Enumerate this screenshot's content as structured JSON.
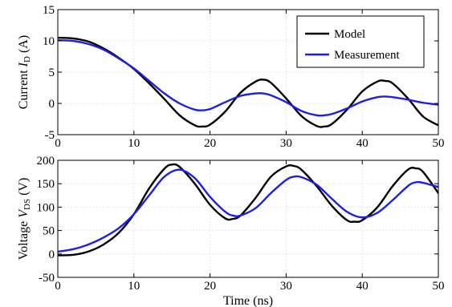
{
  "chart_data": [
    {
      "type": "line",
      "xlabel": "",
      "ylabel": "Current",
      "ylabel_symbol": "I",
      "ylabel_subscript": "D",
      "ylabel_unit": "(A)",
      "xlim": [
        0,
        50
      ],
      "ylim": [
        -5,
        15
      ],
      "xticks": [
        0,
        10,
        20,
        30,
        40,
        50
      ],
      "yticks": [
        -5,
        0,
        5,
        10,
        15
      ],
      "grid": true,
      "legend": {
        "placement": "top-right",
        "entries": [
          "Model",
          "Measurement"
        ]
      },
      "series": [
        {
          "name": "Model",
          "color": "#000000",
          "x": [
            0,
            2,
            4,
            6,
            8,
            10,
            12,
            14,
            16,
            18,
            19,
            20,
            22,
            24,
            26,
            27,
            28,
            30,
            32,
            34,
            35,
            36,
            38,
            40,
            42,
            43,
            44,
            46,
            48,
            50
          ],
          "y": [
            10.5,
            10.4,
            9.9,
            8.8,
            7.3,
            5.5,
            3.2,
            0.7,
            -1.9,
            -3.5,
            -3.7,
            -3.4,
            -1.3,
            1.7,
            3.5,
            3.8,
            3.3,
            0.8,
            -2.0,
            -3.6,
            -3.7,
            -3.3,
            -1.0,
            1.9,
            3.5,
            3.6,
            3.2,
            0.8,
            -2.1,
            -3.5
          ]
        },
        {
          "name": "Measurement",
          "color": "#1f1fe0",
          "x": [
            0,
            2,
            4,
            6,
            8,
            10,
            12,
            14,
            16,
            18,
            19,
            20,
            22,
            24,
            26,
            27,
            28,
            30,
            32,
            34,
            35,
            36,
            38,
            40,
            42,
            43,
            44,
            46,
            48,
            50
          ],
          "y": [
            10.1,
            10.0,
            9.5,
            8.6,
            7.2,
            5.6,
            3.6,
            1.6,
            0.0,
            -1.0,
            -1.1,
            -0.9,
            0.2,
            1.2,
            1.6,
            1.6,
            1.3,
            0.2,
            -1.2,
            -1.9,
            -1.9,
            -1.7,
            -0.8,
            0.3,
            1.0,
            1.1,
            1.0,
            0.6,
            0.1,
            -0.2
          ]
        }
      ]
    },
    {
      "type": "line",
      "xlabel": "Time (ns)",
      "ylabel": "Voltage",
      "ylabel_symbol": "V",
      "ylabel_subscript": "DS",
      "ylabel_unit": "(V)",
      "xlim": [
        0,
        50
      ],
      "ylim": [
        -50,
        200
      ],
      "xticks": [
        0,
        10,
        20,
        30,
        40,
        50
      ],
      "yticks": [
        -50,
        0,
        50,
        100,
        150,
        200
      ],
      "grid": true,
      "series": [
        {
          "name": "Model",
          "color": "#000000",
          "x": [
            0,
            2,
            4,
            6,
            8,
            10,
            12,
            14,
            15,
            16,
            18,
            20,
            22,
            23,
            24,
            26,
            28,
            30,
            31,
            32,
            34,
            36,
            38,
            39,
            40,
            42,
            44,
            46,
            47,
            48,
            50
          ],
          "y": [
            -3,
            -2,
            5,
            20,
            45,
            85,
            140,
            182,
            191,
            186,
            150,
            105,
            76,
            75,
            82,
            120,
            165,
            187,
            188,
            180,
            145,
            103,
            72,
            69,
            72,
            100,
            145,
            180,
            183,
            175,
            130
          ]
        },
        {
          "name": "Measurement",
          "color": "#1f1fe0",
          "x": [
            0,
            2,
            4,
            6,
            8,
            10,
            12,
            14,
            16,
            18,
            20,
            22,
            23,
            24,
            26,
            28,
            30,
            31,
            32,
            34,
            36,
            38,
            40,
            42,
            44,
            46,
            47,
            48,
            50
          ],
          "y": [
            5,
            10,
            20,
            35,
            55,
            85,
            125,
            165,
            180,
            162,
            122,
            90,
            82,
            82,
            98,
            130,
            158,
            165,
            164,
            148,
            118,
            90,
            78,
            88,
            115,
            145,
            153,
            152,
            143
          ]
        }
      ]
    }
  ]
}
